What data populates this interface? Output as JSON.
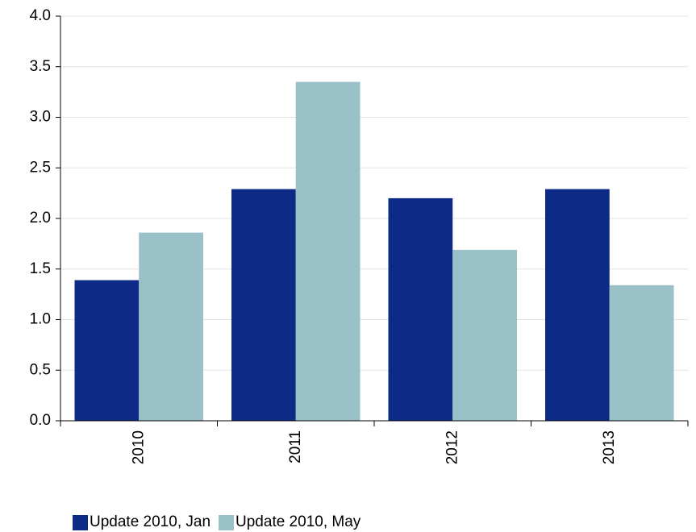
{
  "chart_data": {
    "type": "bar",
    "categories": [
      "2010",
      "2011",
      "2012",
      "2013"
    ],
    "series": [
      {
        "name": "Update 2010, Jan",
        "color": "#0c2a86",
        "values": [
          1.39,
          2.29,
          2.2,
          2.29
        ]
      },
      {
        "name": "Update 2010, May",
        "color": "#9bc1c8",
        "values": [
          1.86,
          3.35,
          1.69,
          1.34
        ]
      }
    ],
    "ylim": [
      0,
      4
    ],
    "yticks": [
      {
        "value": 0,
        "label": "0.0"
      },
      0.5,
      {
        "value": 1,
        "label": "1.0"
      },
      1.5,
      {
        "value": 2,
        "label": "2.0"
      },
      2.5,
      {
        "value": 3,
        "label": "3.0"
      },
      3.5,
      {
        "value": 4,
        "label": "4.0"
      }
    ],
    "grid": true
  }
}
